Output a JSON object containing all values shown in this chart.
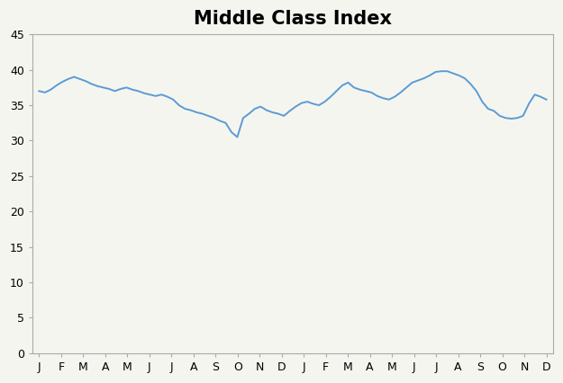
{
  "title": "Middle Class Index",
  "title_fontsize": 15,
  "title_fontweight": "bold",
  "x_labels": [
    "J",
    "F",
    "M",
    "A",
    "M",
    "J",
    "J",
    "A",
    "S",
    "O",
    "N",
    "D",
    "J",
    "F",
    "M",
    "A",
    "M",
    "J",
    "J",
    "A",
    "S",
    "O",
    "N",
    "D"
  ],
  "ylim": [
    0,
    45
  ],
  "yticks": [
    0,
    5,
    10,
    15,
    20,
    25,
    30,
    35,
    40,
    45
  ],
  "line_color": "#5b9bd5",
  "line_width": 1.4,
  "background_color": "#f5f5f0",
  "plot_bg": "#f5f5f0",
  "spine_color": "#aaaaaa",
  "values": [
    37.0,
    36.8,
    37.2,
    37.8,
    38.3,
    38.7,
    39.0,
    38.7,
    38.4,
    38.0,
    37.7,
    37.5,
    37.3,
    37.0,
    37.3,
    37.5,
    37.2,
    37.0,
    36.7,
    36.5,
    36.3,
    36.5,
    36.2,
    35.8,
    35.0,
    34.5,
    34.3,
    34.0,
    33.8,
    33.5,
    33.2,
    32.8,
    32.5,
    31.2,
    30.5,
    33.2,
    33.8,
    34.5,
    34.8,
    34.3,
    34.0,
    33.8,
    33.5,
    34.2,
    34.8,
    35.3,
    35.5,
    35.2,
    35.0,
    35.5,
    36.2,
    37.0,
    37.8,
    38.2,
    37.5,
    37.2,
    37.0,
    36.8,
    36.3,
    36.0,
    35.8,
    36.2,
    36.8,
    37.5,
    38.2,
    38.5,
    38.8,
    39.2,
    39.7,
    39.8,
    39.8,
    39.5,
    39.2,
    38.8,
    38.0,
    37.0,
    35.5,
    34.5,
    34.2,
    33.5,
    33.2,
    33.1,
    33.2,
    33.5,
    35.2,
    36.5,
    36.2,
    35.8
  ]
}
